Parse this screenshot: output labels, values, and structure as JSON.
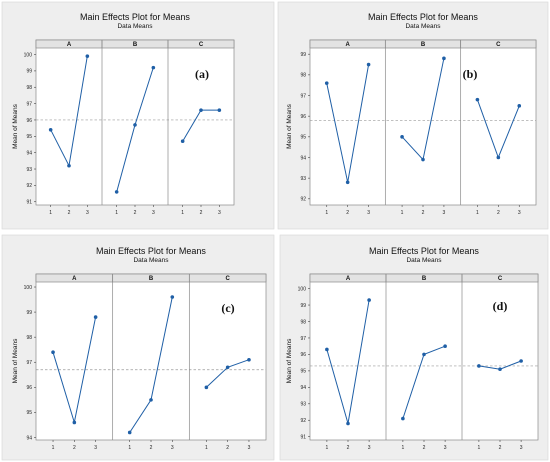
{
  "chart_data": [
    {
      "type": "line",
      "tag": "(a)",
      "title": "Main Effects Plot for Means",
      "subtitle": "Data Means",
      "ylabel": "Mean of Means",
      "ylim": [
        90.8,
        100.4
      ],
      "yticks": [
        91,
        92,
        93,
        94,
        95,
        96,
        97,
        98,
        99,
        100
      ],
      "reference_line": 96.0,
      "categories": [
        "1",
        "2",
        "3"
      ],
      "factors": [
        {
          "name": "A",
          "values": [
            95.4,
            93.2,
            99.9
          ]
        },
        {
          "name": "B",
          "values": [
            91.6,
            95.7,
            99.2
          ]
        },
        {
          "name": "C",
          "values": [
            94.7,
            96.6,
            96.6
          ]
        }
      ]
    },
    {
      "type": "line",
      "tag": "(b)",
      "title": "Main Effects Plot for Means",
      "subtitle": "Data Means",
      "ylabel": "Mean of Means",
      "ylim": [
        91.7,
        99.3
      ],
      "yticks": [
        92,
        93,
        94,
        95,
        96,
        97,
        98,
        99
      ],
      "reference_line": 95.8,
      "categories": [
        "1",
        "2",
        "3"
      ],
      "factors": [
        {
          "name": "A",
          "values": [
            97.6,
            92.8,
            98.5
          ]
        },
        {
          "name": "B",
          "values": [
            95.0,
            93.9,
            98.8
          ]
        },
        {
          "name": "C",
          "values": [
            96.8,
            94.0,
            96.5
          ]
        }
      ]
    },
    {
      "type": "line",
      "tag": "(c)",
      "title": "Main Effects Plot for Means",
      "subtitle": "Data Means",
      "ylabel": "Mean of Means",
      "ylim": [
        93.9,
        100.2
      ],
      "yticks": [
        94,
        95,
        96,
        97,
        98,
        99,
        100
      ],
      "reference_line": 96.7,
      "categories": [
        "1",
        "2",
        "3"
      ],
      "factors": [
        {
          "name": "A",
          "values": [
            97.4,
            94.6,
            98.8
          ]
        },
        {
          "name": "B",
          "values": [
            94.2,
            95.5,
            99.6
          ]
        },
        {
          "name": "C",
          "values": [
            96.0,
            96.8,
            97.1
          ]
        }
      ]
    },
    {
      "type": "line",
      "tag": "(d)",
      "title": "Main Effects Plot for Means",
      "subtitle": "Data Means",
      "ylabel": "Mean of Means",
      "ylim": [
        90.8,
        100.4
      ],
      "yticks": [
        91,
        92,
        93,
        94,
        95,
        96,
        97,
        98,
        99,
        100
      ],
      "reference_line": 95.3,
      "categories": [
        "1",
        "2",
        "3"
      ],
      "factors": [
        {
          "name": "A",
          "values": [
            96.3,
            91.8,
            99.3
          ]
        },
        {
          "name": "B",
          "values": [
            92.1,
            96.0,
            96.5
          ]
        },
        {
          "name": "C",
          "values": [
            95.3,
            95.1,
            95.6
          ]
        }
      ]
    }
  ]
}
